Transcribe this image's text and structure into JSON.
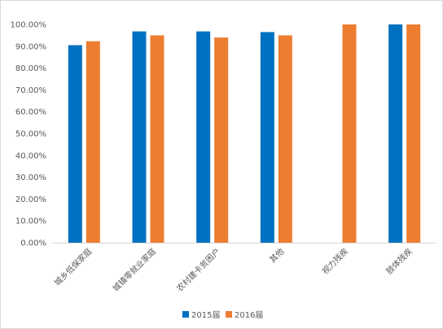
{
  "chart_data": {
    "type": "bar",
    "categories": [
      "城乡低保家庭",
      "城镇零就业家庭",
      "农村建卡贫困户",
      "其他",
      "视力残疾",
      "肢体残疾"
    ],
    "series": [
      {
        "name": "2015届",
        "color": "#0070C0",
        "values": [
          90.5,
          96.8,
          96.8,
          96.5,
          null,
          100.0
        ]
      },
      {
        "name": "2016届",
        "color": "#ED7D31",
        "values": [
          92.3,
          95.0,
          94.0,
          95.0,
          100.0,
          100.0
        ]
      }
    ],
    "y_ticks": [
      "0.00%",
      "10.00%",
      "20.00%",
      "30.00%",
      "40.00%",
      "50.00%",
      "60.00%",
      "70.00%",
      "80.00%",
      "90.00%",
      "100.00%"
    ],
    "ylim": [
      0,
      100
    ],
    "grid": false,
    "legend": "bottom"
  }
}
